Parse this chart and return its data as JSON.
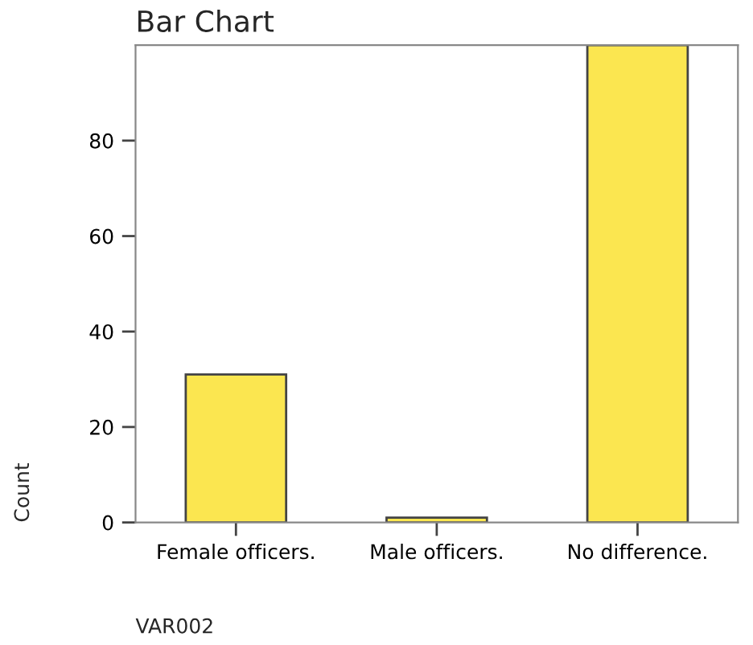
{
  "chart_data": {
    "type": "bar",
    "title": "Bar Chart",
    "xlabel": "VAR002",
    "ylabel": "Count",
    "categories": [
      "Female officers.",
      "Male officers.",
      "No difference."
    ],
    "values": [
      31,
      1,
      100
    ],
    "color": "#fbe650",
    "ylim": [
      0,
      100
    ],
    "yticks": [
      0,
      20,
      40,
      60,
      80
    ],
    "grid": false,
    "legend": false
  }
}
